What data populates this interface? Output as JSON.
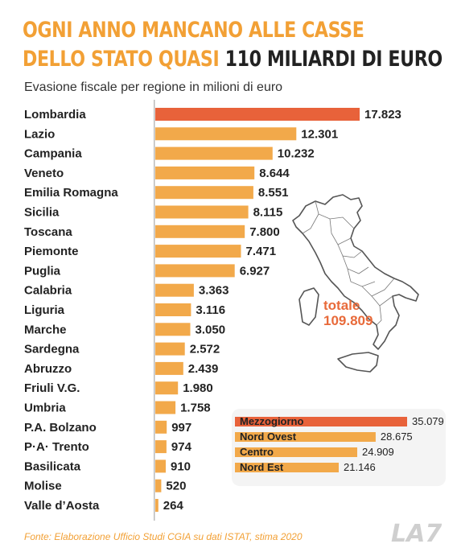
{
  "header": {
    "title_line1": "OGNI ANNO MANCANO ALLE CASSE",
    "title_line2_a": "DELLO STATO QUASI",
    "title_line2_b": "110 MILIARDI DI EURO",
    "subtitle": "Evasione fiscale per regione in milioni di euro"
  },
  "colors": {
    "highlight": "#e8623a",
    "bar": "#f2a94a",
    "text": "#222222"
  },
  "chart_data": [
    {
      "type": "bar",
      "orientation": "horizontal",
      "title": "Evasione fiscale per regione in milioni di euro",
      "categories": [
        "Lombardia",
        "Lazio",
        "Campania",
        "Veneto",
        "Emilia Romagna",
        "Sicilia",
        "Toscana",
        "Piemonte",
        "Puglia",
        "Calabria",
        "Liguria",
        "Marche",
        "Sardegna",
        "Abruzzo",
        "Friuli V.G.",
        "Umbria",
        "P.A. Bolzano",
        "P·A· Trento",
        "Basilicata",
        "Molise",
        "Valle d’Aosta"
      ],
      "values": [
        17823,
        12301,
        10232,
        8644,
        8551,
        8115,
        7800,
        7471,
        6927,
        3363,
        3116,
        3050,
        2572,
        2439,
        1980,
        1758,
        997,
        974,
        910,
        520,
        264
      ],
      "value_labels": [
        "17.823",
        "12.301",
        "10.232",
        "8.644",
        "8.551",
        "8.115",
        "7.800",
        "7.471",
        "6.927",
        "3.363",
        "3.116",
        "3.050",
        "2.572",
        "2.439",
        "1.980",
        "1.758",
        "997",
        "974",
        "910",
        "520",
        "264"
      ],
      "highlighted": [
        "Lombardia"
      ],
      "total_label": "totale",
      "total_value": "109.809"
    },
    {
      "type": "bar",
      "orientation": "horizontal",
      "categories": [
        "Mezzogiorno",
        "Nord Ovest",
        "Centro",
        "Nord Est"
      ],
      "values": [
        35079,
        28675,
        24909,
        21146
      ],
      "value_labels": [
        "35.079",
        "28.675",
        "24.909",
        "21.146"
      ],
      "highlighted": [
        "Mezzogiorno"
      ]
    }
  ],
  "footer": {
    "source": "Fonte: Elaborazione Ufficio Studi CGIA su dati ISTAT, stima 2020",
    "logo": "LA7"
  }
}
